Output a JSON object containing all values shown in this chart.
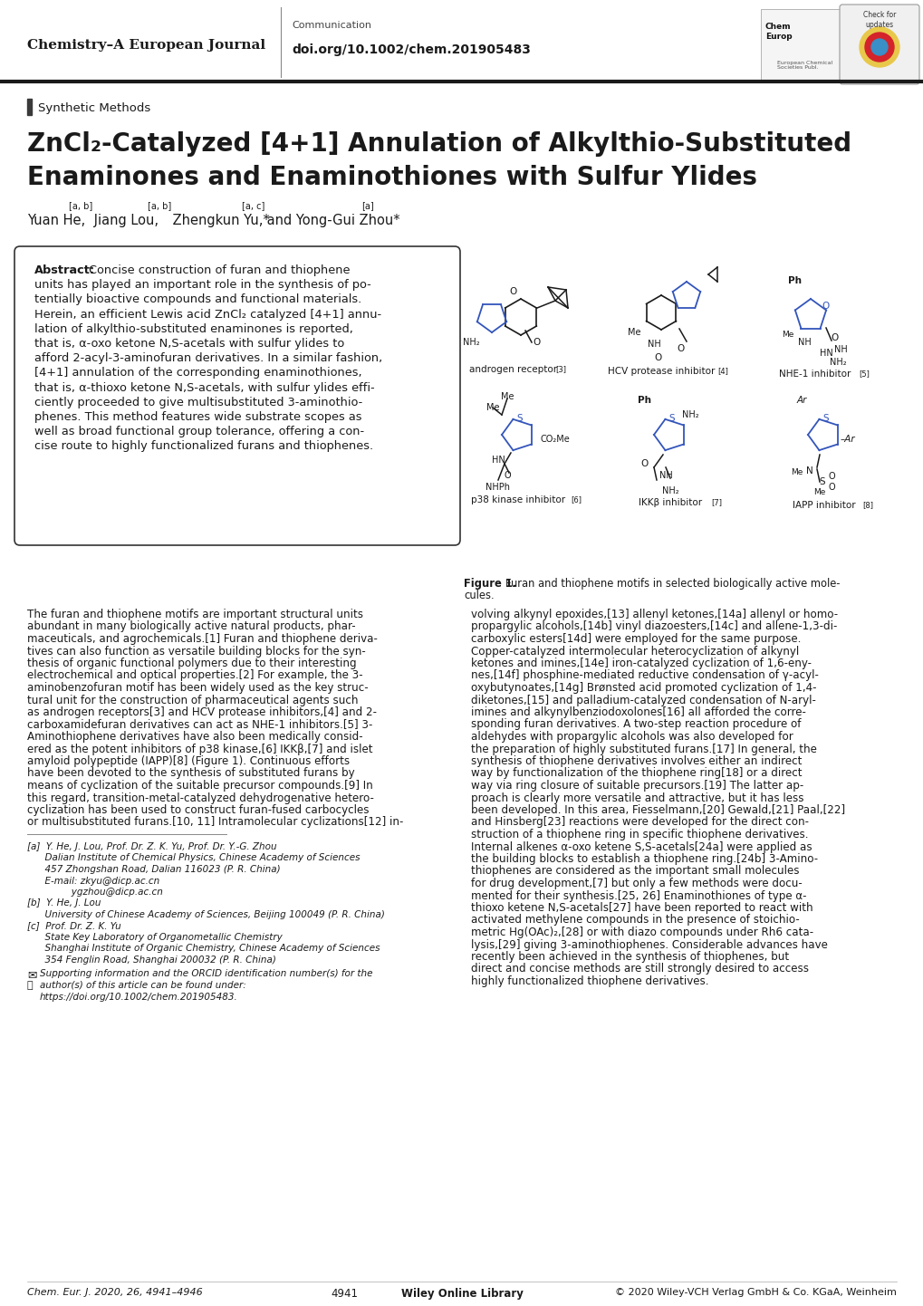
{
  "page_width": 10.2,
  "page_height": 14.42,
  "background_color": "#ffffff",
  "header": {
    "journal_name": "Chemistry–A European Journal",
    "section": "Communication",
    "doi": "doi.org/10.1002/chem.201905483",
    "text_color": "#1a1a1a"
  },
  "section_label": "Synthetic Methods",
  "section_bar_color": "#555555",
  "title_line1": "ZnCl₂-Catalyzed [4+1] Annulation of Alkylthio-Substituted",
  "title_line2": "Enaminones and Enaminothiones with Sulfur Ylides",
  "abstract_lines": [
    "Abstract:  Concise construction of furan and thiophene",
    "units has played an important role in the synthesis of po-",
    "tentially bioactive compounds and functional materials.",
    "Herein, an efficient Lewis acid ZnCl₂ catalyzed [4+1] annu-",
    "lation of alkylthio-substituted enaminones is reported,",
    "that is, α-oxo ketone N,S-acetals with sulfur ylides to",
    "afford 2-acyl-3-aminofuran derivatives. In a similar fashion,",
    "[4+1] annulation of the corresponding enaminothiones,",
    "that is, α-thioxo ketone N,S-acetals, with sulfur ylides effi-",
    "ciently proceeded to give multisubstituted 3-aminothio-",
    "phenes. This method features wide substrate scopes as",
    "well as broad functional group tolerance, offering a con-",
    "cise route to highly functionalized furans and thiophenes."
  ],
  "body_left": [
    "The furan and thiophene motifs are important structural units",
    "abundant in many biologically active natural products, phar-",
    "maceuticals, and agrochemicals.[1] Furan and thiophene deriva-",
    "tives can also function as versatile building blocks for the syn-",
    "thesis of organic functional polymers due to their interesting",
    "electrochemical and optical properties.[2] For example, the 3-",
    "aminobenzofuran motif has been widely used as the key struc-",
    "tural unit for the construction of pharmaceutical agents such",
    "as androgen receptors[3] and HCV protease inhibitors,[4] and 2-",
    "carboxamidefuran derivatives can act as NHE-1 inhibitors.[5] 3-",
    "Aminothiophene derivatives have also been medically consid-",
    "ered as the potent inhibitors of p38 kinase,[6] IKKβ,[7] and islet",
    "amyloid polypeptide (IAPP)[8] (Figure 1). Continuous efforts",
    "have been devoted to the synthesis of substituted furans by",
    "means of cyclization of the suitable precursor compounds.[9] In",
    "this regard, transition-metal-catalyzed dehydrogenative hetero-",
    "cyclization has been used to construct furan-fused carbocycles",
    "or multisubstituted furans.[10, 11] Intramolecular cyclizations[12] in-"
  ],
  "body_right": [
    "volving alkynyl epoxides,[13] allenyl ketones,[14a] allenyl or homo-",
    "propargylic alcohols,[14b] vinyl diazoesters,[14c] and allene-1,3-di-",
    "carboxylic esters[14d] were employed for the same purpose.",
    "Copper-catalyzed intermolecular heterocyclization of alkynyl",
    "ketones and imines,[14e] iron-catalyzed cyclization of 1,6-eny-",
    "nes,[14f] phosphine-mediated reductive condensation of γ-acyl-",
    "oxybutynoates,[14g] Brønsted acid promoted cyclization of 1,4-",
    "diketones,[15] and palladium-catalyzed condensation of N-aryl-",
    "imines and alkynylbenziodoxolones[16] all afforded the corre-",
    "sponding furan derivatives. A two-step reaction procedure of",
    "aldehydes with propargylic alcohols was also developed for",
    "the preparation of highly substituted furans.[17] In general, the",
    "synthesis of thiophene derivatives involves either an indirect",
    "way by functionalization of the thiophene ring[18] or a direct",
    "way via ring closure of suitable precursors.[19] The latter ap-",
    "proach is clearly more versatile and attractive, but it has less",
    "been developed. In this area, Fiesselmann,[20] Gewald,[21] Paal,[22]",
    "and Hinsberg[23] reactions were developed for the direct con-",
    "struction of a thiophene ring in specific thiophene derivatives.",
    "Internal alkenes α-oxo ketene S,S-acetals[24a] were applied as",
    "the building blocks to establish a thiophene ring.[24b] 3-Amino-",
    "thiophenes are considered as the important small molecules",
    "for drug development,[7] but only a few methods were docu-",
    "mented for their synthesis.[25, 26] Enaminothiones of type α-",
    "thioxo ketene N,S-acetals[27] have been reported to react with",
    "activated methylene compounds in the presence of stoichio-",
    "metric Hg(OAc)₂,[28] or with diazo compounds under Rh6 cata-",
    "lysis,[29] giving 3-aminothiophenes. Considerable advances have",
    "recently been achieved in the synthesis of thiophenes, but",
    "direct and concise methods are still strongly desired to access",
    "highly functionalized thiophene derivatives."
  ],
  "affiliations": [
    "[a]  Y. He, J. Lou, Prof. Dr. Z. K. Yu, Prof. Dr. Y.-G. Zhou",
    "      Dalian Institute of Chemical Physics, Chinese Academy of Sciences",
    "      457 Zhongshan Road, Dalian 116023 (P. R. China)",
    "      E-mail: zkyu@dicp.ac.cn",
    "               ygzhou@dicp.ac.cn",
    "[b]  Y. He, J. Lou",
    "      University of Chinese Academy of Sciences, Beijing 100049 (P. R. China)",
    "[c]  Prof. Dr. Z. K. Yu",
    "      State Key Laboratory of Organometallic Chemistry",
    "      Shanghai Institute of Organic Chemistry, Chinese Academy of Sciences",
    "      354 Fenglin Road, Shanghai 200032 (P. R. China)"
  ],
  "supporting_info": [
    "Supporting information and the ORCID identification number(s) for the",
    "author(s) of this article can be found under:",
    "https://doi.org/10.1002/chem.201905483."
  ],
  "footer_left": "Chem. Eur. J. 2020, 26, 4941–4946",
  "footer_center_bold": "Wiley Online Library",
  "footer_page": "4941",
  "footer_right": "© 2020 Wiley-VCH Verlag GmbH & Co. KGaA, Weinheim",
  "fig_caption_bold": "Figure 1.",
  "fig_caption_rest": " Furan and thiophene motifs in selected biologically active mole-\ncules."
}
